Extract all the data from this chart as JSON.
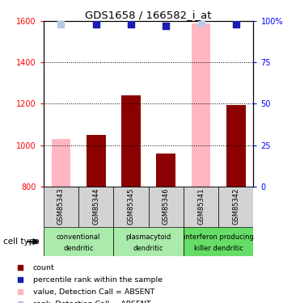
{
  "title": "GDS1658 / 166582_i_at",
  "samples": [
    "GSM85343",
    "GSM85344",
    "GSM85345",
    "GSM85346",
    "GSM85341",
    "GSM85342"
  ],
  "values": [
    1030,
    1050,
    1240,
    960,
    1590,
    1195
  ],
  "absent": [
    true,
    false,
    false,
    false,
    true,
    false
  ],
  "percentile_ranks": [
    98,
    98,
    98,
    97,
    99,
    98
  ],
  "absent_rank": [
    true,
    false,
    false,
    false,
    true,
    false
  ],
  "ylim_left": [
    800,
    1600
  ],
  "ylim_right": [
    0,
    100
  ],
  "yticks_left": [
    800,
    1000,
    1200,
    1400,
    1600
  ],
  "ytick_labels_left": [
    "800",
    "1000",
    "1200",
    "1400",
    "1600"
  ],
  "yticks_right": [
    0,
    25,
    50,
    75,
    100
  ],
  "ytick_labels_right": [
    "0",
    "25",
    "50",
    "75",
    "100%"
  ],
  "color_dark_red": "#8B0000",
  "color_pink": "#FFB6C1",
  "color_blue_dark": "#1C1CB0",
  "color_blue_light": "#B8C8E8",
  "groups": [
    {
      "label": "conventional\ndendritic",
      "samples": [
        0,
        1
      ],
      "color": "#AAEAAA"
    },
    {
      "label": "plasmacytoid\ndendritic",
      "samples": [
        2,
        3
      ],
      "color": "#AAEAAA"
    },
    {
      "label": "interferon producing\nkiller dendritic",
      "samples": [
        4,
        5
      ],
      "color": "#66DD66"
    }
  ],
  "legend_items": [
    {
      "color": "#8B0000",
      "label": "count"
    },
    {
      "color": "#1C1CB0",
      "label": "percentile rank within the sample"
    },
    {
      "color": "#FFB6C1",
      "label": "value, Detection Call = ABSENT"
    },
    {
      "color": "#B8C8E8",
      "label": "rank, Detection Call = ABSENT"
    }
  ],
  "cell_type_label": "cell type",
  "bar_width": 0.55,
  "dot_size": 28
}
